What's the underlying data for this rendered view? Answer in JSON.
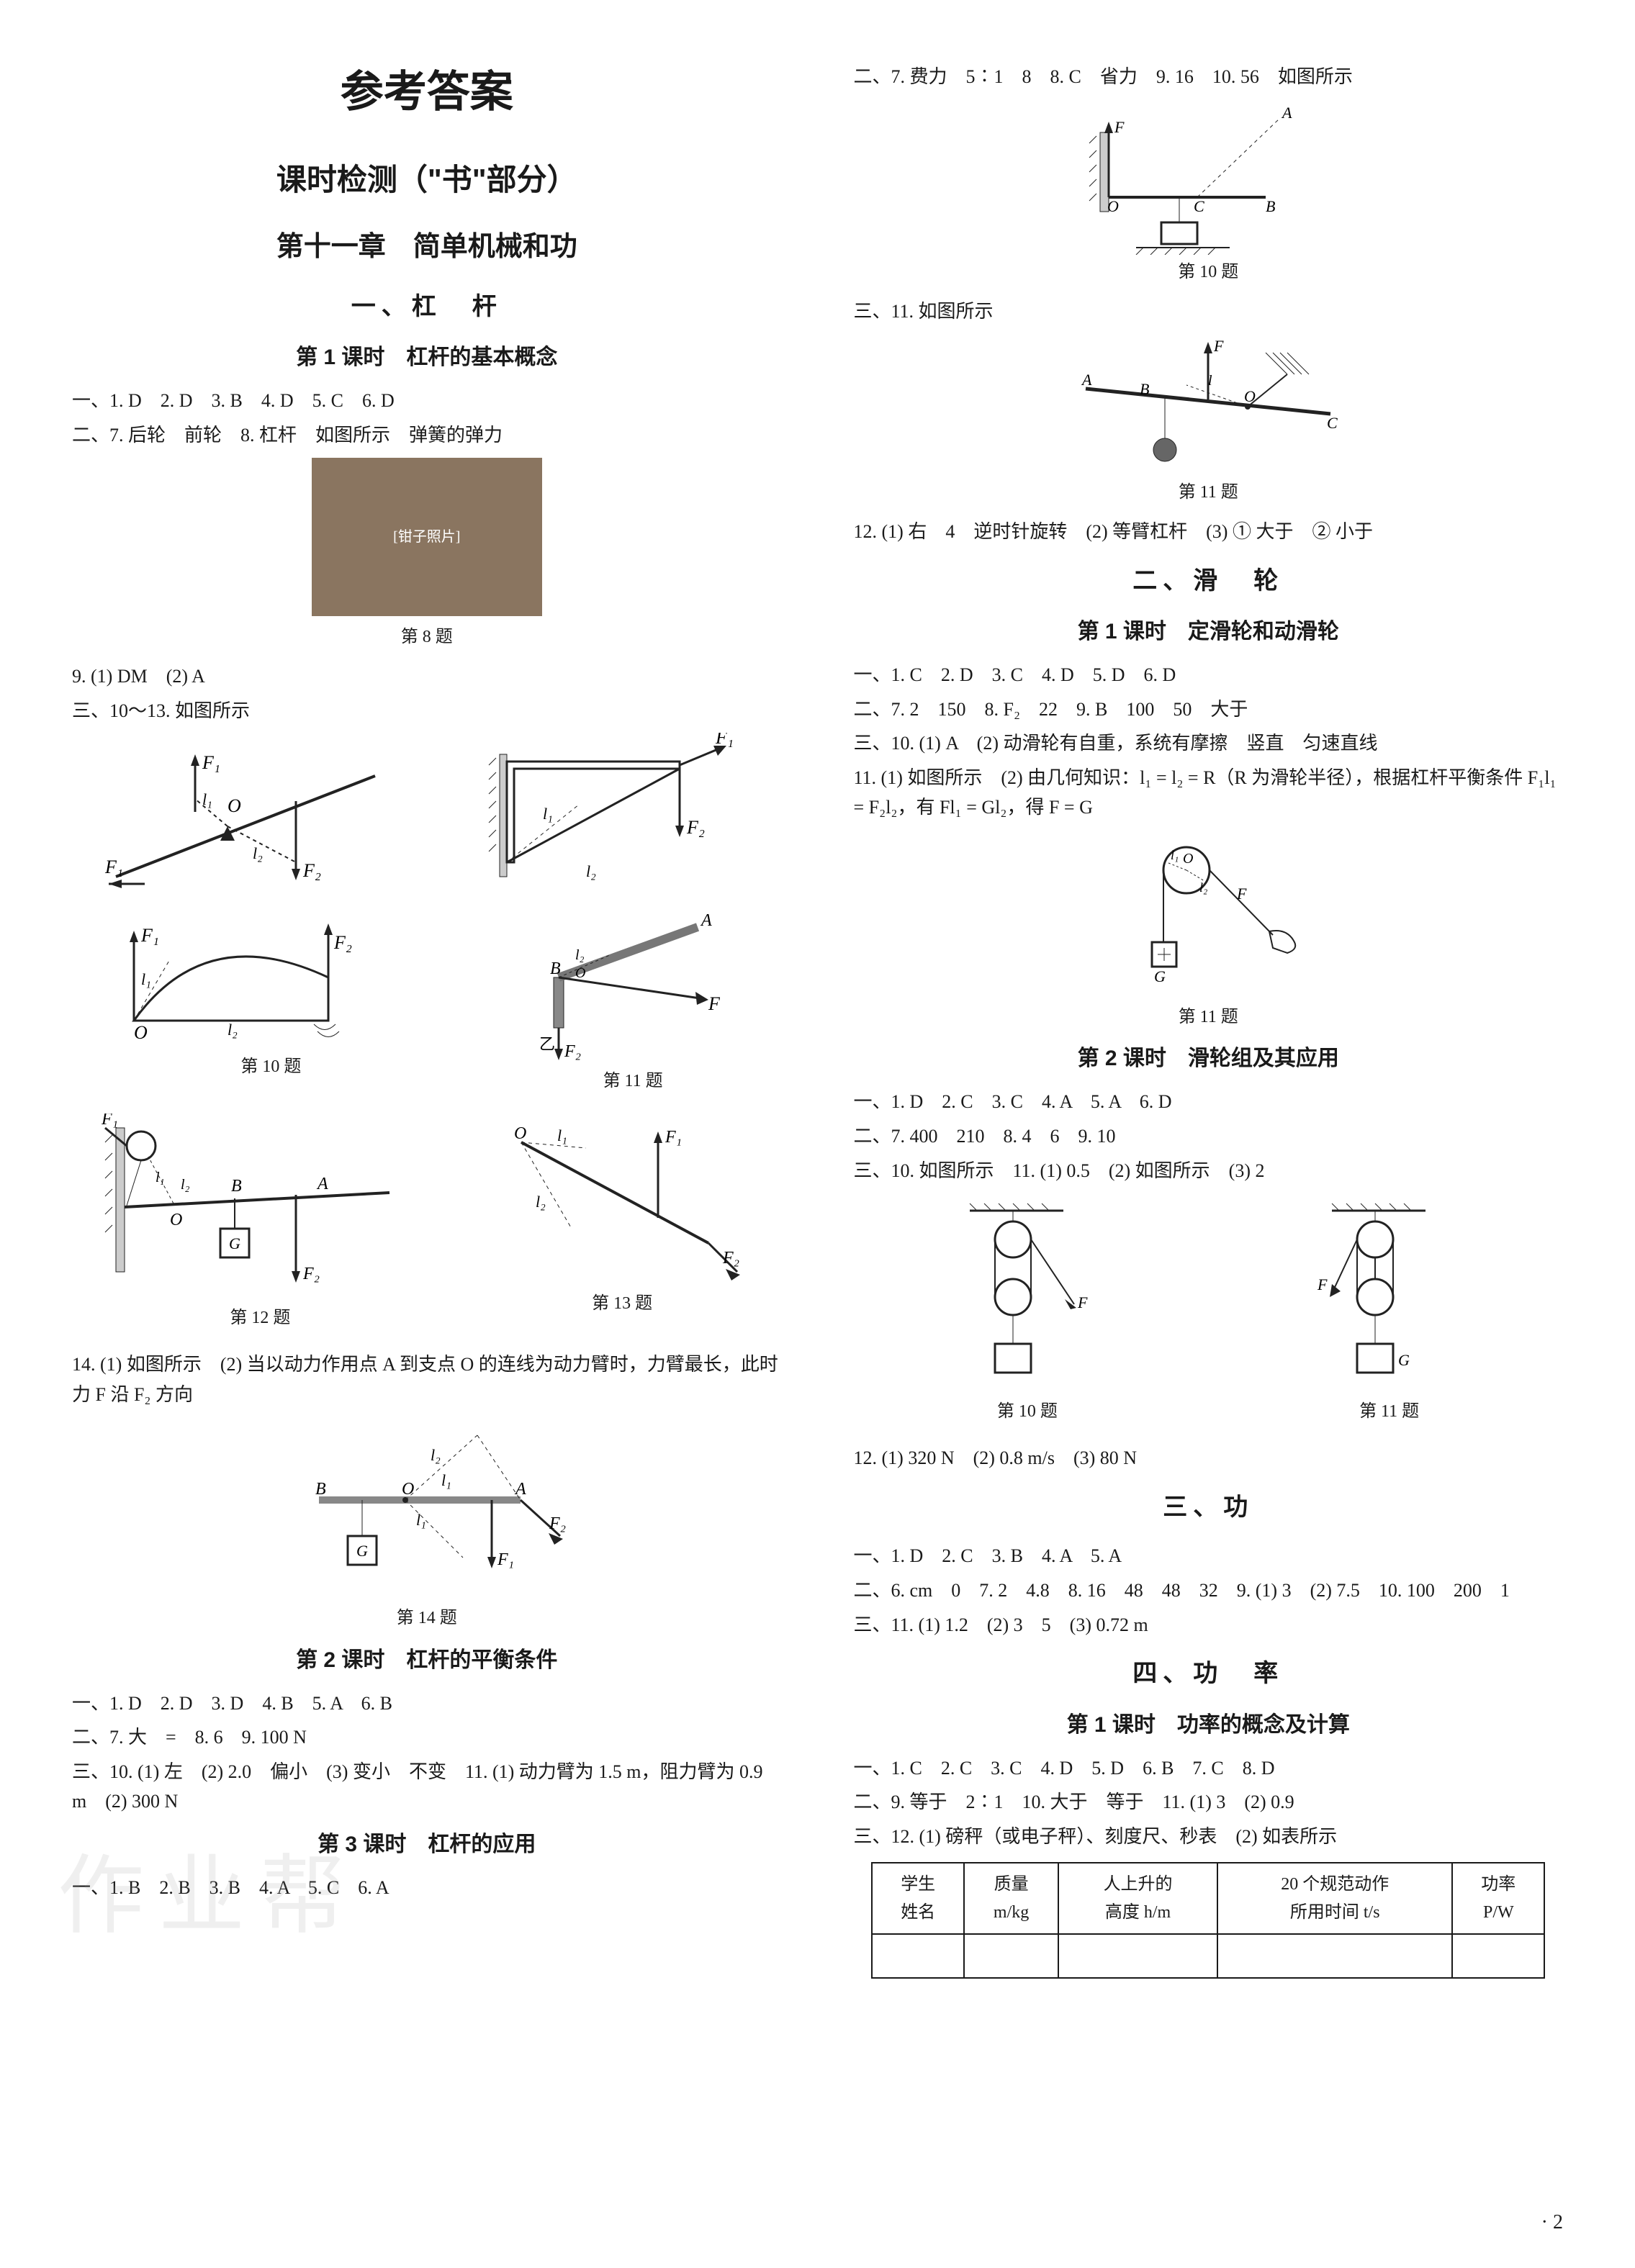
{
  "main_title": "参考答案",
  "section_title": "课时检测（\"书\"部分）",
  "chapter_title": "第十一章　简单机械和功",
  "left": {
    "topic1": "一、杠　杆",
    "lesson1_title": "第 1 课时　杠杆的基本概念",
    "lesson1_a1": "一、1. D　2. D　3. B　4. D　5. C　6. D",
    "lesson1_a2": "二、7. 后轮　前轮　8. 杠杆　如图所示　弹簧的弹力",
    "fig8_caption": "第 8 题",
    "lesson1_a3": "9. (1) DM　(2) A",
    "lesson1_a4": "三、10～13. 如图所示",
    "fig10_caption": "第 10 题",
    "fig11_caption": "第 11 题",
    "fig12_caption": "第 12 题",
    "fig13_caption": "第 13 题",
    "lesson1_a5": "14. (1) 如图所示　(2) 当以动力作用点 A 到支点 O 的连线为动力臂时，力臂最长，此时力 F 沿 F₂ 方向",
    "fig14_caption": "第 14 题",
    "lesson2_title": "第 2 课时　杠杆的平衡条件",
    "lesson2_a1": "一、1. D　2. D　3. D　4. B　5. A　6. B",
    "lesson2_a2": "二、7. 大　=　8. 6　9. 100 N",
    "lesson2_a3": "三、10. (1) 左　(2) 2.0　偏小　(3) 变小　不变　11. (1) 动力臂为 1.5 m，阻力臂为 0.9 m　(2) 300 N",
    "lesson3_title": "第 3 课时　杠杆的应用",
    "lesson3_a1": "一、1. B　2. B　3. B　4. A　5. C　6. A"
  },
  "right": {
    "lesson3_a2": "二、7. 费力　5∶1　8　8. C　省力　9. 16　10. 56　如图所示",
    "fig10b_caption": "第 10 题",
    "lesson3_a3": "三、11. 如图所示",
    "fig11b_caption": "第 11 题",
    "lesson3_a4": "12. (1) 右　4　逆时针旋转　(2) 等臂杠杆　(3) ① 大于　② 小于",
    "topic2": "二、滑　轮",
    "lesson1b_title": "第 1 课时　定滑轮和动滑轮",
    "lesson1b_a1": "一、1. C　2. D　3. C　4. D　5. D　6. D",
    "lesson1b_a2": "二、7. 2　150　8. F₂　22　9. B　100　50　大于",
    "lesson1b_a3": "三、10. (1) A　(2) 动滑轮有自重，系统有摩擦　竖直　匀速直线",
    "lesson1b_a4": "11. (1) 如图所示　(2) 由几何知识：l₁ = l₂ = R（R 为滑轮半径），根据杠杆平衡条件 F₁l₁ = F₂l₂，有 Fl₁ = Gl₂，得 F = G",
    "fig11c_caption": "第 11 题",
    "lesson2b_title": "第 2 课时　滑轮组及其应用",
    "lesson2b_a1": "一、1. D　2. C　3. C　4. A　5. A　6. D",
    "lesson2b_a2": "二、7. 400　210　8. 4　6　9. 10",
    "lesson2b_a3": "三、10. 如图所示　11. (1) 0.5　(2) 如图所示　(3) 2",
    "fig10c_caption": "第 10 题",
    "fig11d_caption": "第 11 题",
    "lesson2b_a4": "12. (1) 320 N　(2) 0.8 m/s　(3) 80 N",
    "topic3": "三、功",
    "topic3_a1": "一、1. D　2. C　3. B　4. A　5. A",
    "topic3_a2": "二、6. cm　0　7. 2　4.8　8. 16　48　48　32　9. (1) 3　(2) 7.5　10. 100　200　1",
    "topic3_a3": "三、11. (1) 1.2　(2) 3　5　(3) 0.72 m",
    "topic4": "四、功　率",
    "lesson1d_title": "第 1 课时　功率的概念及计算",
    "lesson1d_a1": "一、1. C　2. C　3. C　4. D　5. D　6. B　7. C　8. D",
    "lesson1d_a2": "二、9. 等于　2∶1　10. 大于　等于　11. (1) 3　(2) 0.9",
    "lesson1d_a3": "三、12. (1) 磅秤（或电子秤）、刻度尺、秒表　(2) 如表所示",
    "table": {
      "headers": [
        "学生\n姓名",
        "质量\nm/kg",
        "人上升的\n高度 h/m",
        "20 个规范动作\n所用时间 t/s",
        "功率\nP/W"
      ],
      "row_count": 1
    }
  },
  "watermark_text": "作业帮",
  "page_number": "· 2"
}
